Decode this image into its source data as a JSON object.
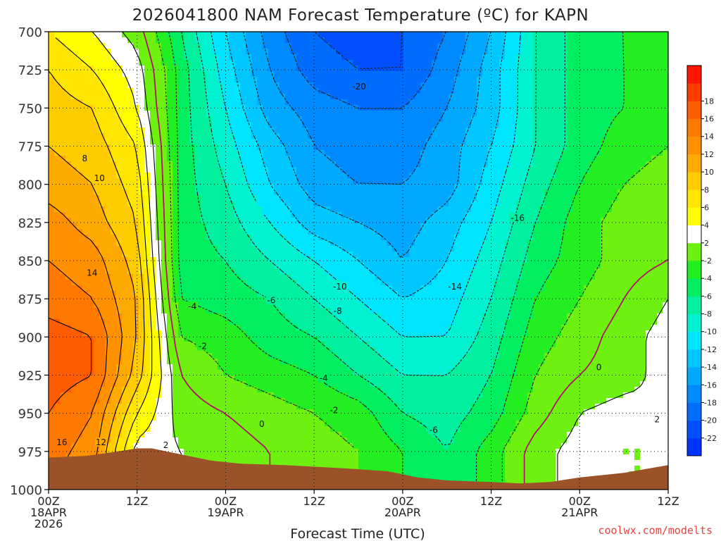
{
  "chart_data": {
    "type": "heatmap",
    "title": "2026041800 NAM Forecast Temperature (ºC) for KAPN",
    "xlabel": "Forecast Time (UTC)",
    "ylabel": "",
    "credit": "coolwx.com/modelts",
    "x_hours": [
      0,
      6,
      12,
      18,
      24,
      30,
      36,
      42,
      48,
      54,
      60,
      66,
      72,
      78,
      84
    ],
    "y_levels": [
      700,
      725,
      750,
      775,
      800,
      825,
      850,
      875,
      900,
      925,
      950,
      975,
      1000
    ],
    "xlim": [
      0,
      84
    ],
    "ylim": [
      1000,
      700
    ],
    "grid": true,
    "x_ticks": [
      {
        "hour": 0,
        "lines": [
          "00Z",
          "18APR",
          "2026"
        ]
      },
      {
        "hour": 12,
        "lines": [
          "12Z"
        ]
      },
      {
        "hour": 24,
        "lines": [
          "00Z",
          "19APR"
        ]
      },
      {
        "hour": 36,
        "lines": [
          "12Z"
        ]
      },
      {
        "hour": 48,
        "lines": [
          "00Z",
          "20APR"
        ]
      },
      {
        "hour": 60,
        "lines": [
          "12Z"
        ]
      },
      {
        "hour": 72,
        "lines": [
          "00Z",
          "21APR"
        ]
      },
      {
        "hour": 84,
        "lines": [
          "12Z"
        ]
      }
    ],
    "y_ticks": [
      700,
      725,
      750,
      775,
      800,
      825,
      850,
      875,
      900,
      925,
      950,
      975,
      1000
    ],
    "values": [
      [
        6,
        4,
        1,
        -6,
        -12,
        -17,
        -20,
        -21,
        -20,
        -18,
        -14,
        -8,
        -5,
        -4,
        -2
      ],
      [
        8,
        6,
        3,
        -5,
        -11,
        -16,
        -19,
        -20,
        -20,
        -17,
        -13,
        -8,
        -5,
        -4,
        -3
      ],
      [
        9,
        8,
        4,
        -5,
        -10,
        -15,
        -17,
        -18,
        -18,
        -16,
        -13,
        -8,
        -5,
        -4,
        -3
      ],
      [
        10,
        9,
        6,
        -5,
        -9,
        -13,
        -16,
        -17,
        -17,
        -15,
        -12,
        -8,
        -5,
        -3,
        -2
      ],
      [
        11,
        10,
        7,
        -5,
        -8,
        -12,
        -15,
        -16,
        -16,
        -15,
        -11,
        -7,
        -4,
        -2,
        -1
      ],
      [
        13,
        11,
        8,
        -5,
        -7,
        -10,
        -13,
        -14,
        -15,
        -13,
        -10,
        -6,
        -3,
        -1,
        -1
      ],
      [
        14,
        13,
        9,
        -5,
        -6,
        -8,
        -10,
        -12,
        -14,
        -12,
        -9,
        -5,
        -3,
        -1,
        0
      ],
      [
        15,
        14,
        10,
        -4,
        -5,
        -6,
        -8,
        -10,
        -12,
        -11,
        -8,
        -4,
        -2,
        0,
        2
      ],
      [
        17,
        16,
        10,
        -2,
        -3,
        -5,
        -6,
        -8,
        -10,
        -10,
        -7,
        -3,
        -1,
        1,
        3
      ],
      [
        17,
        16,
        9,
        0,
        -2,
        -3,
        -4,
        -6,
        -8,
        -8,
        -6,
        -2,
        0,
        1,
        3
      ],
      [
        16,
        14,
        6,
        1,
        0,
        -1,
        -2,
        -3,
        -6,
        -7,
        -5,
        -1,
        2,
        3,
        2
      ],
      [
        15,
        13,
        3,
        2,
        1,
        0,
        -1,
        -2,
        -4,
        -6,
        -3,
        1,
        3,
        2,
        2
      ],
      [
        14,
        12,
        3,
        2,
        1,
        0,
        -1,
        -2,
        -4,
        -6,
        -3,
        1,
        3,
        2,
        2
      ]
    ],
    "terrain_pressure": [
      {
        "hour": 0,
        "p": 979
      },
      {
        "hour": 5,
        "p": 978
      },
      {
        "hour": 8,
        "p": 976
      },
      {
        "hour": 12,
        "p": 973
      },
      {
        "hour": 14,
        "p": 973
      },
      {
        "hour": 18,
        "p": 977
      },
      {
        "hour": 22,
        "p": 981
      },
      {
        "hour": 26,
        "p": 983
      },
      {
        "hour": 32,
        "p": 984
      },
      {
        "hour": 40,
        "p": 986
      },
      {
        "hour": 46,
        "p": 988
      },
      {
        "hour": 50,
        "p": 992
      },
      {
        "hour": 54,
        "p": 994
      },
      {
        "hour": 60,
        "p": 995
      },
      {
        "hour": 64,
        "p": 996
      },
      {
        "hour": 68,
        "p": 995
      },
      {
        "hour": 72,
        "p": 992
      },
      {
        "hour": 78,
        "p": 989
      },
      {
        "hour": 84,
        "p": 984
      }
    ],
    "contour_labels": [
      {
        "text": "8",
        "hour": 4.9,
        "p": 783
      },
      {
        "text": "10",
        "hour": 6.9,
        "p": 796
      },
      {
        "text": "14",
        "hour": 5.9,
        "p": 858
      },
      {
        "text": "16",
        "hour": 1.8,
        "p": 969
      },
      {
        "text": "12",
        "hour": 7.1,
        "p": 969
      },
      {
        "text": "2",
        "hour": 15.9,
        "p": 971
      },
      {
        "text": "-4",
        "hour": 19.5,
        "p": 880
      },
      {
        "text": "-2",
        "hour": 20.9,
        "p": 906
      },
      {
        "text": "-6",
        "hour": 30.2,
        "p": 876
      },
      {
        "text": "0",
        "hour": 28.9,
        "p": 957
      },
      {
        "text": "-10",
        "hour": 39.5,
        "p": 867
      },
      {
        "text": "-8",
        "hour": 39.2,
        "p": 883
      },
      {
        "text": "-4",
        "hour": 37.3,
        "p": 927
      },
      {
        "text": "-2",
        "hour": 38.7,
        "p": 948
      },
      {
        "text": "-20",
        "hour": 42.1,
        "p": 736
      },
      {
        "text": "-16",
        "hour": 63.6,
        "p": 822
      },
      {
        "text": "-14",
        "hour": 55.1,
        "p": 867
      },
      {
        "text": "-6",
        "hour": 52.2,
        "p": 961
      },
      {
        "text": "0",
        "hour": 74.6,
        "p": 920
      },
      {
        "text": "2",
        "hour": 82.5,
        "p": 954
      }
    ],
    "colorbar": {
      "levels": [
        -24,
        -22,
        -20,
        -18,
        -16,
        -14,
        -12,
        -10,
        -8,
        -6,
        -4,
        -2,
        2,
        4,
        6,
        8,
        10,
        12,
        14,
        16,
        18,
        20
      ],
      "tick_labels": [
        "-22",
        "-20",
        "-18",
        "-16",
        "-14",
        "-12",
        "-10",
        "-8",
        "-6",
        "-4",
        "-2",
        "2",
        "4",
        "6",
        "8",
        "10",
        "12",
        "14",
        "16",
        "18"
      ],
      "colors": [
        "#0033ff",
        "#0050ff",
        "#006dff",
        "#008aff",
        "#00a8ff",
        "#00c8ff",
        "#00e5ff",
        "#00f2d0",
        "#00f0a0",
        "#00ee60",
        "#22ee22",
        "#6ef010",
        "#ffffff",
        "#ffff00",
        "#ffe600",
        "#ffcc00",
        "#ffaa00",
        "#ff9000",
        "#ff7800",
        "#ff5c00",
        "#ff3c00",
        "#ff1500"
      ],
      "positive_contour_color": "#000000",
      "negative_contour_color": "#222222",
      "zero_contour_color": "#b0106a"
    }
  }
}
